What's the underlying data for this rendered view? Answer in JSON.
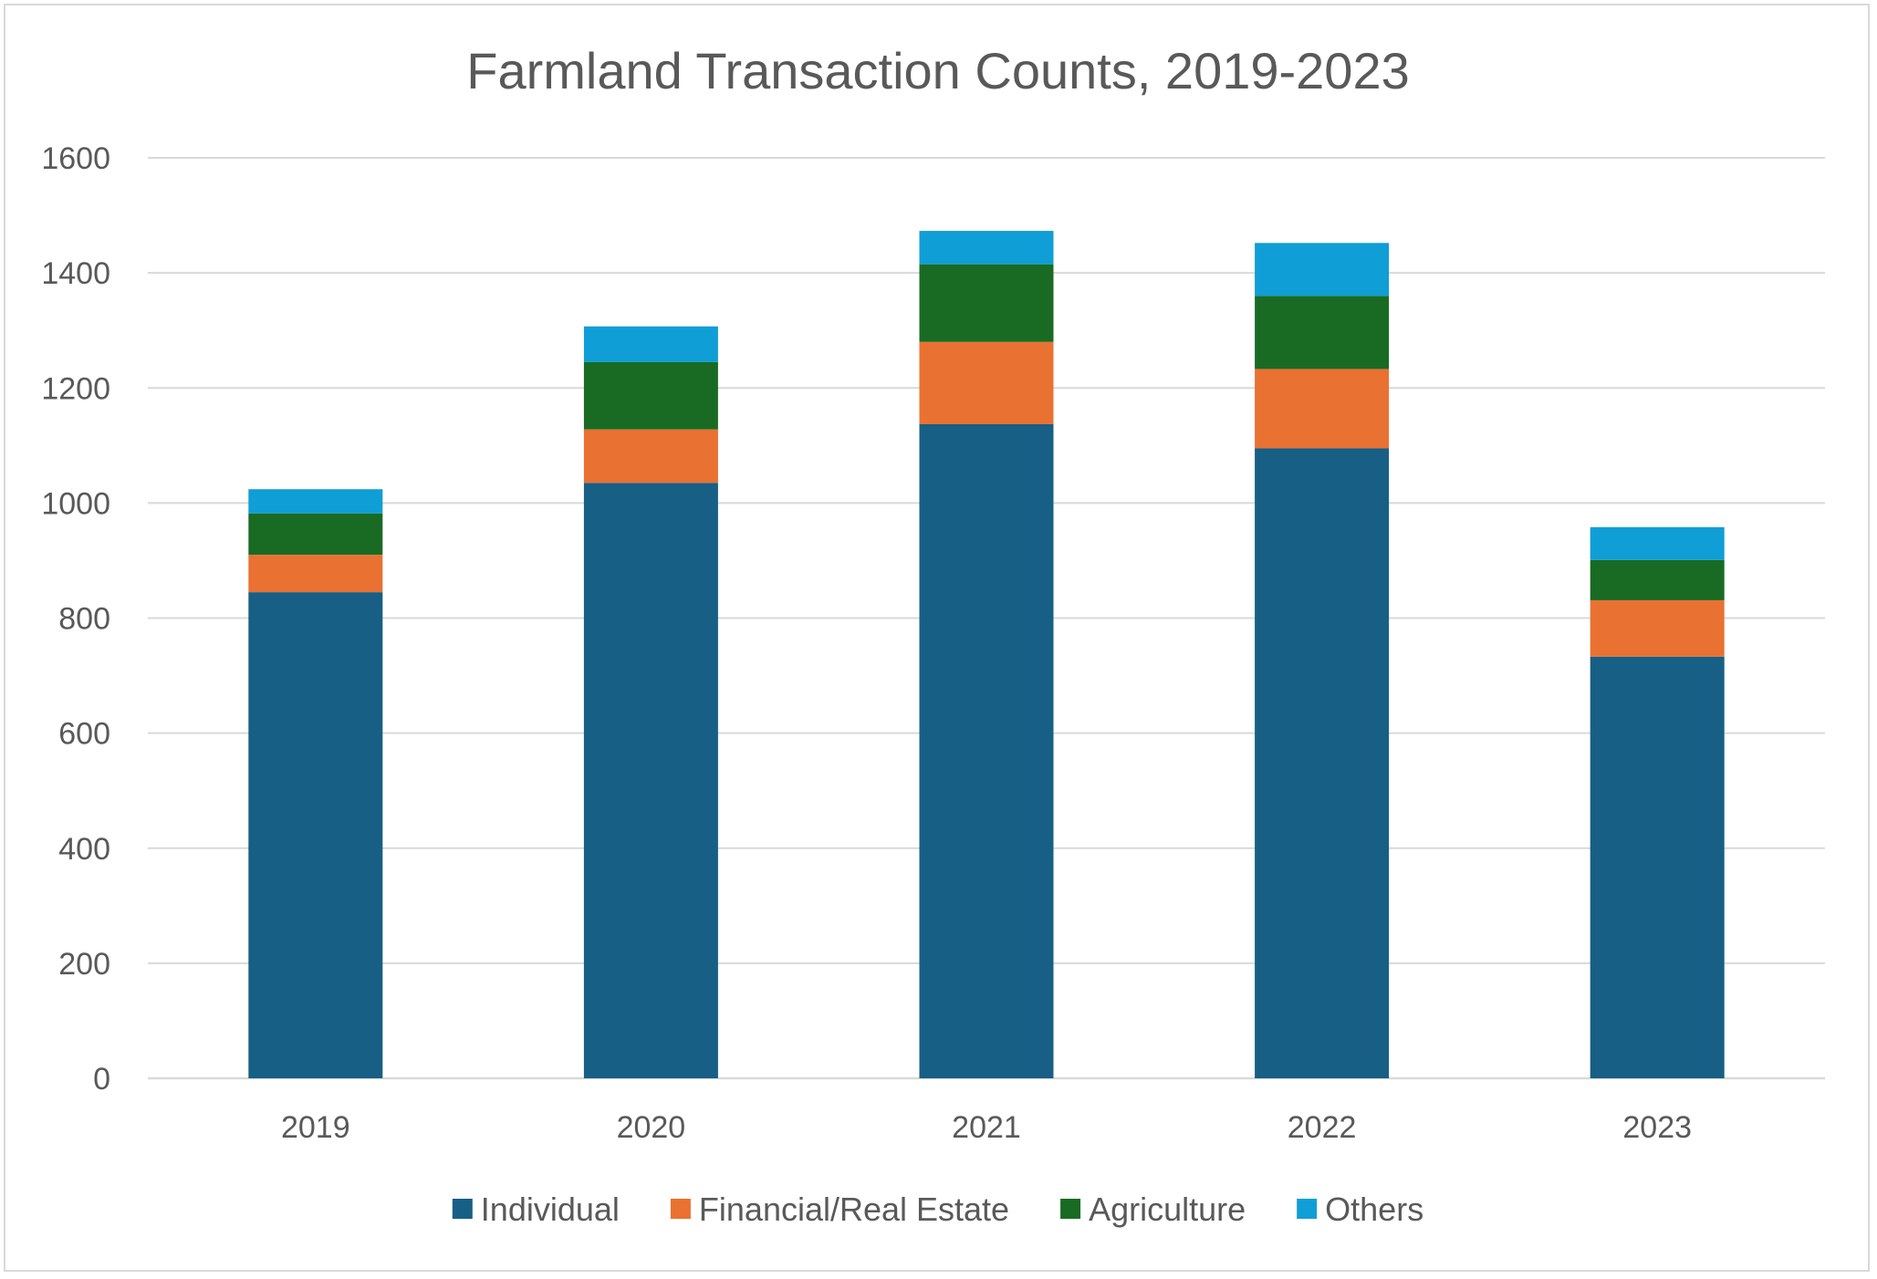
{
  "chart_data": {
    "type": "bar",
    "stacked": true,
    "title": "Farmland Transaction Counts, 2019-2023",
    "xlabel": "",
    "ylabel": "",
    "categories": [
      "2019",
      "2020",
      "2021",
      "2022",
      "2023"
    ],
    "ylim": [
      0,
      1600
    ],
    "yticks": [
      0,
      200,
      400,
      600,
      800,
      1000,
      1200,
      1400,
      1600
    ],
    "grid": true,
    "legend_position": "bottom",
    "series": [
      {
        "name": "Individual",
        "color": "#175f85",
        "values": [
          845,
          1035,
          1137,
          1095,
          733
        ]
      },
      {
        "name": "Financial/Real Estate",
        "color": "#e97132",
        "values": [
          65,
          93,
          143,
          138,
          98
        ]
      },
      {
        "name": "Agriculture",
        "color": "#196b24",
        "values": [
          72,
          117,
          135,
          127,
          70
        ]
      },
      {
        "name": "Others",
        "color": "#0f9ed5",
        "values": [
          42,
          62,
          58,
          92,
          57
        ]
      }
    ]
  }
}
